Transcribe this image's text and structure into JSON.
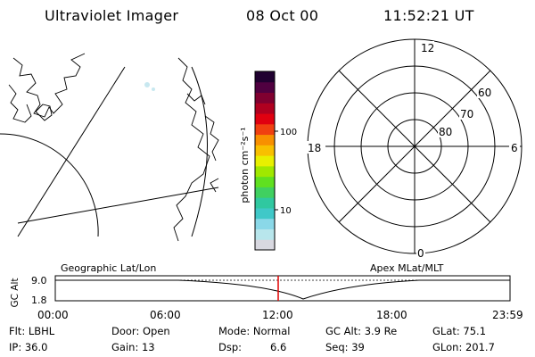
{
  "header": {
    "instrument": "Ultraviolet Imager",
    "date": "08 Oct 00",
    "time": "11:52:21 UT"
  },
  "colorbar": {
    "label": "photon cm⁻²s⁻¹",
    "ticks": [
      "100",
      "10"
    ],
    "colors": [
      "#d8d8e0",
      "#b8e6ec",
      "#8ad8e8",
      "#40c8c8",
      "#30c8a0",
      "#40d060",
      "#60e020",
      "#a0e800",
      "#e8f000",
      "#f8c000",
      "#f89000",
      "#f04010",
      "#e00010",
      "#b00020",
      "#800030",
      "#500040",
      "#200030"
    ]
  },
  "polar_plot": {
    "mlt_labels": [
      "12",
      "18",
      "6",
      "0"
    ],
    "mlat_labels": [
      "60",
      "70",
      "80"
    ]
  },
  "timeline": {
    "left_title": "Geographic Lat/Lon",
    "right_title": "Apex MLat/MLT",
    "y_axis_label": "GC Alt",
    "y_ticks": [
      "9.0",
      "1.8"
    ],
    "x_ticks": [
      "00:00",
      "06:00",
      "12:00",
      "18:00",
      "23:59"
    ],
    "current_time_marker": "11:52"
  },
  "info": {
    "flt": "Flt: LBHL",
    "door": "Door: Open",
    "mode": "Mode: Normal",
    "gc_alt": "GC Alt: 3.9 Re",
    "glat": "GLat: 75.1",
    "ip": "IP: 36.0",
    "gain": "Gain: 13",
    "dsp_label": "Dsp:",
    "dsp_value": "6.6",
    "seq": "Seq: 39",
    "glon": "GLon: 201.7"
  },
  "colors": {
    "marker": "#e00000",
    "line": "#000000"
  }
}
